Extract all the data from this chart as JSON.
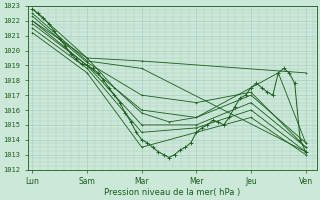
{
  "xlabel": "Pression niveau de la mer( hPa )",
  "ylim": [
    1012,
    1023
  ],
  "yticks": [
    1012,
    1013,
    1014,
    1015,
    1016,
    1017,
    1018,
    1019,
    1020,
    1021,
    1022,
    1023
  ],
  "xtick_labels": [
    "Lun",
    "Sam",
    "Mar",
    "Mer",
    "Jeu",
    "Ven"
  ],
  "xtick_positions": [
    0,
    1,
    2,
    3,
    4,
    5
  ],
  "bg_color": "#cce8d8",
  "grid_color": "#a8cfc0",
  "line_color": "#1a5c1a",
  "lines": [
    {
      "x": [
        0,
        1,
        2,
        5
      ],
      "y": [
        1022.8,
        1019.5,
        1019.3,
        1018.5
      ]
    },
    {
      "x": [
        0,
        1,
        2,
        5
      ],
      "y": [
        1022.5,
        1019.3,
        1018.8,
        1013.2
      ]
    },
    {
      "x": [
        0,
        1,
        2,
        3,
        4,
        5
      ],
      "y": [
        1022.3,
        1019.2,
        1017.0,
        1016.5,
        1017.2,
        1013.5
      ]
    },
    {
      "x": [
        0,
        1,
        2,
        3,
        4,
        5
      ],
      "y": [
        1022.0,
        1019.0,
        1016.0,
        1015.5,
        1017.0,
        1013.8
      ]
    },
    {
      "x": [
        0,
        1,
        2,
        3,
        4,
        5
      ],
      "y": [
        1021.8,
        1019.0,
        1015.0,
        1015.0,
        1016.5,
        1013.5
      ]
    },
    {
      "x": [
        0,
        1,
        2,
        3,
        4,
        5
      ],
      "y": [
        1021.5,
        1018.8,
        1014.5,
        1014.8,
        1016.0,
        1013.2
      ]
    },
    {
      "x": [
        0,
        1,
        2,
        3,
        4,
        5
      ],
      "y": [
        1021.2,
        1018.5,
        1013.5,
        1014.5,
        1015.5,
        1013.0
      ]
    },
    {
      "x": [
        0,
        1,
        1.5,
        2,
        2.5,
        3,
        4,
        4.5,
        5
      ],
      "y": [
        1022.0,
        1019.5,
        1017.5,
        1015.8,
        1015.2,
        1015.5,
        1017.5,
        1018.5,
        1013.8
      ]
    }
  ],
  "detailed_line": {
    "x": [
      0,
      0.1,
      0.2,
      0.3,
      0.4,
      0.5,
      0.6,
      0.7,
      0.8,
      0.9,
      1.0,
      1.1,
      1.2,
      1.3,
      1.4,
      1.5,
      1.6,
      1.7,
      1.8,
      1.9,
      2.0,
      2.1,
      2.2,
      2.3,
      2.4,
      2.5,
      2.6,
      2.7,
      2.8,
      2.9,
      3.0,
      3.1,
      3.2,
      3.3,
      3.4,
      3.5,
      3.6,
      3.7,
      3.8,
      3.9,
      4.0,
      4.1,
      4.2,
      4.3,
      4.4,
      4.5,
      4.6,
      4.7,
      4.8,
      4.9,
      5.0
    ],
    "y": [
      1022.8,
      1022.5,
      1022.2,
      1021.8,
      1021.3,
      1020.8,
      1020.3,
      1019.8,
      1019.4,
      1019.1,
      1019.0,
      1018.8,
      1018.5,
      1018.0,
      1017.5,
      1017.0,
      1016.5,
      1015.8,
      1015.2,
      1014.5,
      1014.0,
      1013.8,
      1013.5,
      1013.2,
      1013.0,
      1012.8,
      1013.0,
      1013.3,
      1013.5,
      1013.8,
      1014.5,
      1014.8,
      1015.0,
      1015.3,
      1015.2,
      1015.0,
      1015.5,
      1016.2,
      1016.8,
      1017.0,
      1017.5,
      1017.8,
      1017.5,
      1017.2,
      1017.0,
      1018.5,
      1018.8,
      1018.5,
      1017.8,
      1014.0,
      1013.2
    ]
  }
}
